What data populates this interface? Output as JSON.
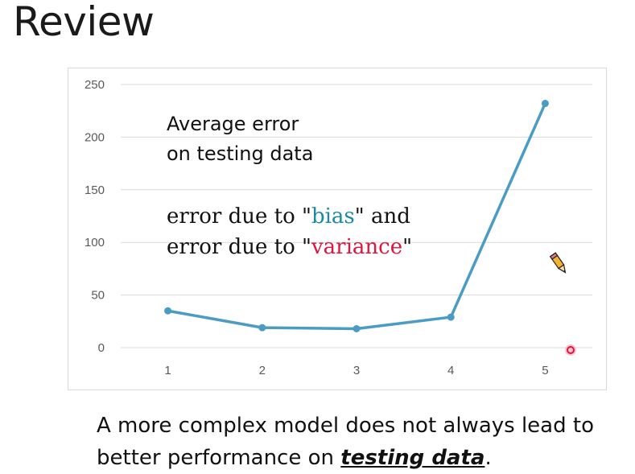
{
  "slide": {
    "title": "Review",
    "note_line1": "Average error",
    "note_line2": "on testing data",
    "note_line3_prefix": "error due to \"",
    "note_bias": "bias",
    "note_line3_suffix": "\" and",
    "note_line4_prefix": "error due to \"",
    "note_variance": "variance",
    "note_line4_suffix": "\"",
    "caption_line1": "A more complex model does not always lead to",
    "caption_line2_prefix": "better performance on ",
    "caption_emphasis": "testing data",
    "caption_line2_suffix": "."
  },
  "colors": {
    "line": "#4a9cc4",
    "bias": "#1a8aa6",
    "variance": "#e0143c",
    "grid": "#d9d9d9",
    "tick_text": "#595959"
  },
  "icons": [
    "pencil-icon",
    "pointer-dot-icon"
  ],
  "chart_data": {
    "type": "line",
    "x": [
      1,
      2,
      3,
      4,
      5
    ],
    "categories": [
      "1",
      "2",
      "3",
      "4",
      "5"
    ],
    "series": [
      {
        "values": [
          35,
          19,
          18,
          29,
          232
        ]
      }
    ],
    "ylim": [
      0,
      250
    ],
    "yticks": [
      0,
      50,
      100,
      150,
      200,
      250
    ],
    "grid": true,
    "legend": "none",
    "title": "",
    "xlabel": "",
    "ylabel": ""
  }
}
